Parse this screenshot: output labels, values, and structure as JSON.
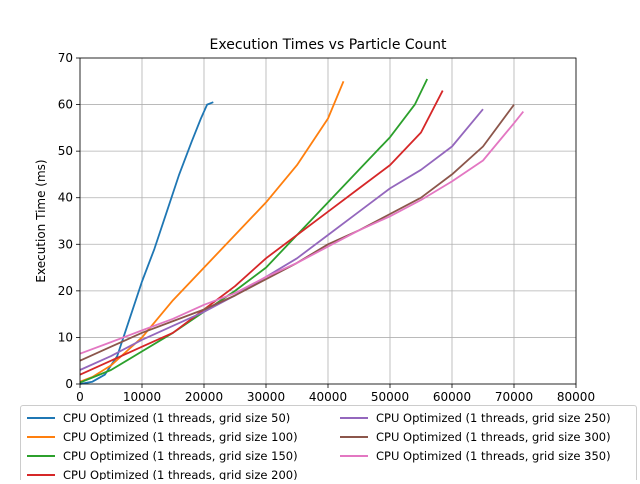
{
  "chart_data": {
    "type": "line",
    "title": "Execution Times vs Particle Count",
    "xlabel": "",
    "ylabel": "Execution Time (ms)",
    "xlim": [
      0,
      80000
    ],
    "ylim": [
      0,
      70
    ],
    "xticks": [
      "0",
      "10000",
      "20000",
      "30000",
      "40000",
      "50000",
      "60000",
      "70000",
      "80000"
    ],
    "yticks": [
      "0",
      "10",
      "20",
      "30",
      "40",
      "50",
      "60",
      "70"
    ],
    "grid": true,
    "legend_position": "bottom",
    "series": [
      {
        "name": "CPU Optimized (1 threads, grid size 50)",
        "color": "#1f77b4",
        "x": [
          0,
          2000,
          4000,
          6000,
          8000,
          10000,
          12000,
          14000,
          16000,
          18000,
          19500,
          20500,
          21500
        ],
        "y": [
          0,
          0.5,
          2,
          6,
          14,
          22,
          29,
          37,
          45,
          52,
          57,
          60,
          60.5
        ]
      },
      {
        "name": "CPU Optimized (1 threads, grid size 100)",
        "color": "#ff7f0e",
        "x": [
          0,
          2000,
          5000,
          10000,
          15000,
          20000,
          25000,
          30000,
          35000,
          40000,
          42500
        ],
        "y": [
          0.5,
          1.5,
          4,
          10,
          18,
          25,
          32,
          39,
          47,
          57,
          65
        ]
      },
      {
        "name": "CPU Optimized (1 threads, grid size 150)",
        "color": "#2ca02c",
        "x": [
          0,
          5000,
          10000,
          15000,
          20000,
          25000,
          30000,
          35000,
          40000,
          45000,
          50000,
          54000,
          56000
        ],
        "y": [
          0.3,
          3,
          7,
          11,
          15.5,
          20,
          25,
          32,
          39,
          46,
          53,
          60,
          65.5
        ]
      },
      {
        "name": "CPU Optimized (1 threads, grid size 200)",
        "color": "#d62728",
        "x": [
          0,
          5000,
          10000,
          15000,
          20000,
          25000,
          30000,
          35000,
          40000,
          45000,
          50000,
          55000,
          58500
        ],
        "y": [
          2,
          5,
          8,
          11,
          16,
          21,
          27,
          32,
          37,
          42,
          47,
          54,
          63
        ]
      },
      {
        "name": "CPU Optimized (1 threads, grid size 250)",
        "color": "#9467bd",
        "x": [
          0,
          5000,
          10000,
          15000,
          20000,
          25000,
          30000,
          35000,
          40000,
          45000,
          50000,
          55000,
          60000,
          65000
        ],
        "y": [
          3,
          6,
          9.5,
          12.5,
          15.5,
          19,
          23,
          27,
          32,
          37,
          42,
          46,
          51,
          59
        ]
      },
      {
        "name": "CPU Optimized (1 threads, grid size 300)",
        "color": "#8c564b",
        "x": [
          0,
          5000,
          10000,
          15000,
          20000,
          25000,
          30000,
          35000,
          40000,
          45000,
          50000,
          55000,
          60000,
          65000,
          70000
        ],
        "y": [
          5,
          8,
          11,
          13.5,
          16,
          19,
          22.5,
          26,
          30,
          33,
          36.5,
          40,
          45,
          51,
          60
        ]
      },
      {
        "name": "CPU Optimized (1 threads, grid size 350)",
        "color": "#e377c2",
        "x": [
          0,
          5000,
          10000,
          15000,
          20000,
          25000,
          30000,
          35000,
          40000,
          45000,
          50000,
          55000,
          60000,
          65000,
          70000,
          71500
        ],
        "y": [
          6.5,
          9,
          11.5,
          14,
          17,
          19.5,
          23,
          26,
          29.5,
          33,
          36,
          39.5,
          43.5,
          48,
          56,
          58.5
        ]
      }
    ]
  }
}
